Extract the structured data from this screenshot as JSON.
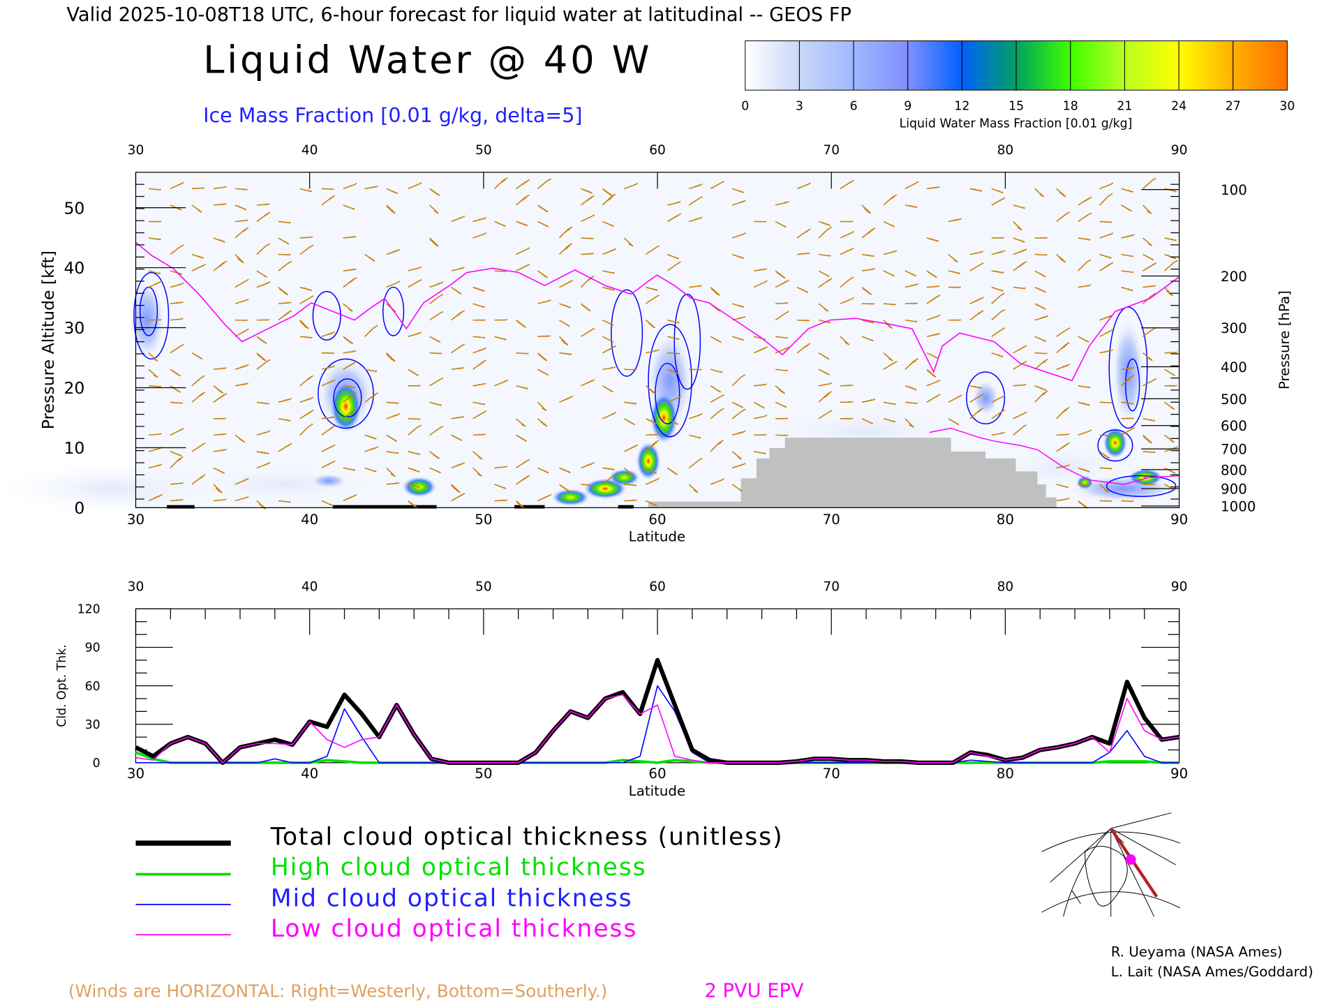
{
  "header": {
    "valid_line": "Valid 2025-10-08T18 UTC, 6-hour forecast for liquid water at latitudinal -- GEOS FP",
    "title": "Liquid Water @ 40 W",
    "subtitle": "Ice Mass Fraction [0.01 g/kg, delta=5]"
  },
  "colorbar": {
    "label": "Liquid Water Mass Fraction [0.01 g/kg]",
    "ticks": [
      "0",
      "3",
      "6",
      "9",
      "12",
      "15",
      "18",
      "21",
      "24",
      "27",
      "30"
    ],
    "colors": [
      "#ffffff",
      "#c8d8f8",
      "#a0b8ff",
      "#8090ff",
      "#0060ff",
      "#00a060",
      "#40ff00",
      "#b8ff20",
      "#ffff00",
      "#ffb000",
      "#ff7000",
      "#ff2000"
    ]
  },
  "upper_plot": {
    "x_ticks": [
      "30",
      "40",
      "50",
      "60",
      "70",
      "80",
      "90"
    ],
    "xlabel": "Latitude",
    "ylabel_left": "Pressure Altitude [kft]",
    "y_ticks_left": [
      "0",
      "10",
      "20",
      "30",
      "40",
      "50"
    ],
    "ylabel_right": "Pressure [hPa]",
    "y_ticks_right": [
      "100",
      "200",
      "300",
      "400",
      "500",
      "600",
      "700",
      "800",
      "900",
      "1000"
    ],
    "accent_colors": {
      "wind": "#c8820a",
      "epv": "#ff00ff",
      "ice": "#0000ff",
      "terrain": "#c0c0c0"
    }
  },
  "chart_data": {
    "type": "line",
    "title": "",
    "xlabel": "Latitude",
    "ylabel": "Cld. Opt. Thk.",
    "xlim": [
      30,
      90
    ],
    "ylim": [
      0,
      120
    ],
    "x_ticks": [
      "30",
      "40",
      "50",
      "60",
      "70",
      "80",
      "90"
    ],
    "y_ticks": [
      "0",
      "30",
      "60",
      "90",
      "120"
    ],
    "x": [
      30,
      31,
      32,
      33,
      34,
      35,
      36,
      37,
      38,
      39,
      40,
      41,
      42,
      43,
      44,
      45,
      46,
      47,
      48,
      49,
      50,
      51,
      52,
      53,
      54,
      55,
      56,
      57,
      58,
      59,
      60,
      61,
      62,
      63,
      64,
      65,
      66,
      67,
      68,
      69,
      70,
      71,
      72,
      73,
      74,
      75,
      76,
      77,
      78,
      79,
      80,
      81,
      82,
      83,
      84,
      85,
      86,
      87,
      88,
      89,
      90
    ],
    "series": [
      {
        "name": "Total cloud optical thickness (unitless)",
        "color": "#000000",
        "values": [
          12,
          5,
          15,
          20,
          15,
          0,
          12,
          15,
          18,
          14,
          32,
          28,
          53,
          38,
          20,
          45,
          22,
          3,
          0,
          0,
          0,
          0,
          0,
          8,
          25,
          40,
          35,
          50,
          55,
          38,
          80,
          45,
          10,
          2,
          0,
          0,
          0,
          0,
          1,
          3,
          3,
          2,
          2,
          1,
          1,
          0,
          0,
          0,
          8,
          6,
          2,
          4,
          10,
          12,
          15,
          20,
          15,
          63,
          35,
          18,
          20
        ]
      },
      {
        "name": "High cloud optical thickness",
        "color": "#00e000",
        "values": [
          8,
          3,
          0,
          0,
          0,
          0,
          0,
          0,
          0,
          0,
          0,
          2,
          1,
          0,
          0,
          0,
          0,
          0,
          0,
          0,
          0,
          0,
          0,
          0,
          0,
          0,
          0,
          0,
          2,
          1,
          0,
          2,
          1,
          0,
          0,
          0,
          0,
          0,
          0,
          0,
          0,
          0,
          0,
          0,
          0,
          0,
          0,
          0,
          0,
          0,
          0,
          0,
          0,
          0,
          0,
          0,
          1,
          1,
          1,
          0,
          0
        ]
      },
      {
        "name": "Mid cloud optical thickness",
        "color": "#0000ff",
        "values": [
          0,
          0,
          0,
          0,
          0,
          0,
          0,
          0,
          3,
          0,
          0,
          5,
          42,
          20,
          0,
          0,
          0,
          0,
          0,
          0,
          0,
          0,
          0,
          0,
          0,
          0,
          0,
          0,
          0,
          5,
          60,
          40,
          8,
          0,
          0,
          0,
          0,
          0,
          0,
          0,
          0,
          0,
          0,
          0,
          0,
          0,
          0,
          0,
          2,
          1,
          0,
          0,
          0,
          0,
          0,
          0,
          8,
          25,
          5,
          0,
          0
        ]
      },
      {
        "name": "Low cloud optical thickness",
        "color": "#ff00ff",
        "values": [
          4,
          2,
          15,
          20,
          15,
          0,
          12,
          15,
          15,
          14,
          32,
          18,
          12,
          18,
          20,
          45,
          22,
          3,
          0,
          0,
          0,
          0,
          0,
          8,
          25,
          40,
          35,
          50,
          53,
          38,
          45,
          5,
          2,
          0,
          0,
          0,
          0,
          0,
          1,
          3,
          3,
          2,
          2,
          1,
          1,
          0,
          0,
          0,
          8,
          5,
          2,
          4,
          10,
          12,
          15,
          20,
          8,
          50,
          25,
          18,
          20
        ]
      }
    ]
  },
  "notes": {
    "winds": "(Winds are HORIZONTAL: Right=Westerly, Bottom=Southerly.)",
    "epv": "2 PVU EPV",
    "credit1": "R. Ueyama (NASA Ames)",
    "credit2": "L. Lait (NASA Ames/Goddard)"
  }
}
